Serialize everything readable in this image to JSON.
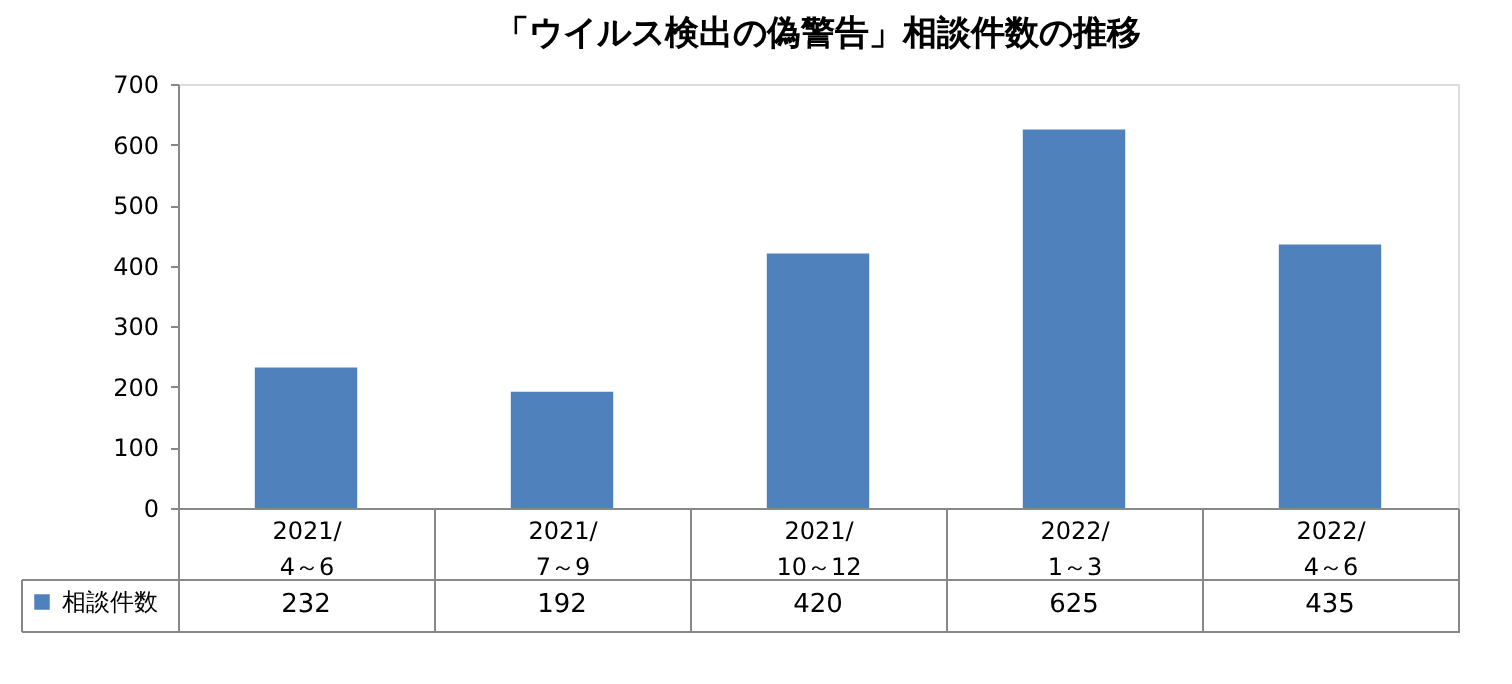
{
  "chart_data": {
    "type": "bar",
    "title": "「ウイルス検出の偽警告」相談件数の推移",
    "categories": [
      "2021/\n4～6",
      "2021/\n7～9",
      "2021/\n10～12",
      "2022/\n1～3",
      "2022/\n4～6"
    ],
    "series": [
      {
        "name": "相談件数",
        "color": "#4f81bd",
        "values": [
          232,
          192,
          420,
          625,
          435
        ]
      }
    ],
    "ylim": [
      0,
      700
    ],
    "yticks": [
      0,
      100,
      200,
      300,
      400,
      500,
      600,
      700
    ],
    "grid": false,
    "legend": "bottom left",
    "data_labels": true
  }
}
